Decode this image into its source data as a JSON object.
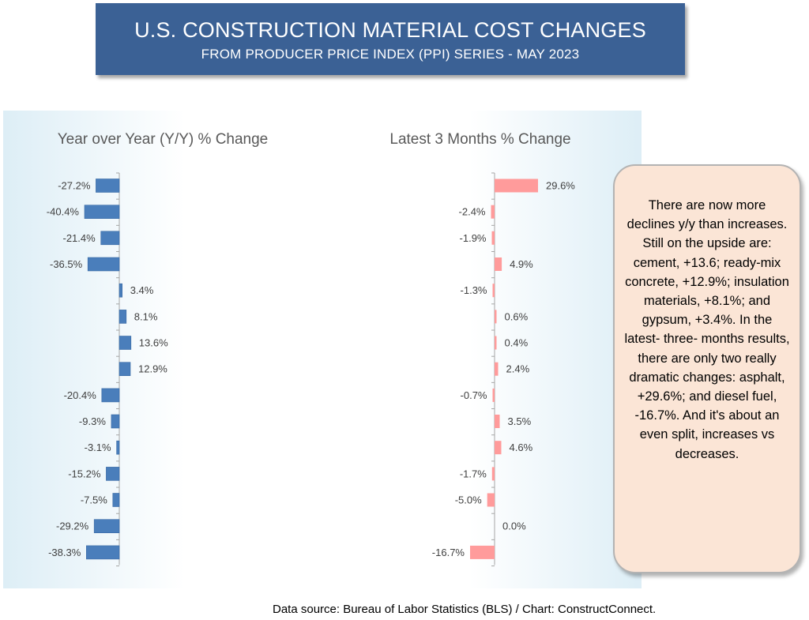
{
  "header": {
    "title": "U.S. CONSTRUCTION MATERIAL COST CHANGES",
    "subtitle": "FROM PRODUCER PRICE INDEX (PPI) SERIES - MAY 2023"
  },
  "chart_data": [
    {
      "type": "bar",
      "orientation": "horizontal",
      "title": "Year over Year (Y/Y) % Change",
      "values": [
        -27.2,
        -40.4,
        -21.4,
        -36.5,
        3.4,
        8.1,
        13.6,
        12.9,
        -20.4,
        -9.3,
        -3.1,
        -15.2,
        -7.5,
        -29.2,
        -38.3
      ],
      "labels": [
        "-27.2%",
        "-40.4%",
        "-21.4%",
        "-36.5%",
        "3.4%",
        "8.1%",
        "13.6%",
        "12.9%",
        "-20.4%",
        "-9.3%",
        "-3.1%",
        "-15.2%",
        "-7.5%",
        "-29.2%",
        "-38.3%"
      ],
      "color": "#4a7ebb",
      "xlabel": "",
      "ylabel": ""
    },
    {
      "type": "bar",
      "orientation": "horizontal",
      "title": "Latest 3 Months % Change",
      "values": [
        29.6,
        -2.4,
        -1.9,
        4.9,
        -1.3,
        0.6,
        0.4,
        2.4,
        -0.7,
        3.5,
        4.6,
        -1.7,
        -5.0,
        0.0,
        -16.7
      ],
      "labels": [
        "29.6%",
        "-2.4%",
        "-1.9%",
        "4.9%",
        "-1.3%",
        "0.6%",
        "0.4%",
        "2.4%",
        "-0.7%",
        "3.5%",
        "4.6%",
        "-1.7%",
        "-5.0%",
        "0.0%",
        "-16.7%"
      ],
      "color": "#ff9b9b",
      "xlabel": "",
      "ylabel": ""
    }
  ],
  "callout": {
    "text": "There are now more declines y/y than increases. Still on the upside are:  cement, +13.6; ready-mix concrete, +12.9%; insulation materials, +8.1%; and gypsum, +3.4%. In the latest- three- months results, there are only two really dramatic changes: asphalt, +29.6%; and diesel fuel, -16.7%. And it's about an even split, increases vs decreases."
  },
  "footer": {
    "source": "Data source: Bureau of Labor Statistics (BLS) / Chart: ConstructConnect."
  }
}
